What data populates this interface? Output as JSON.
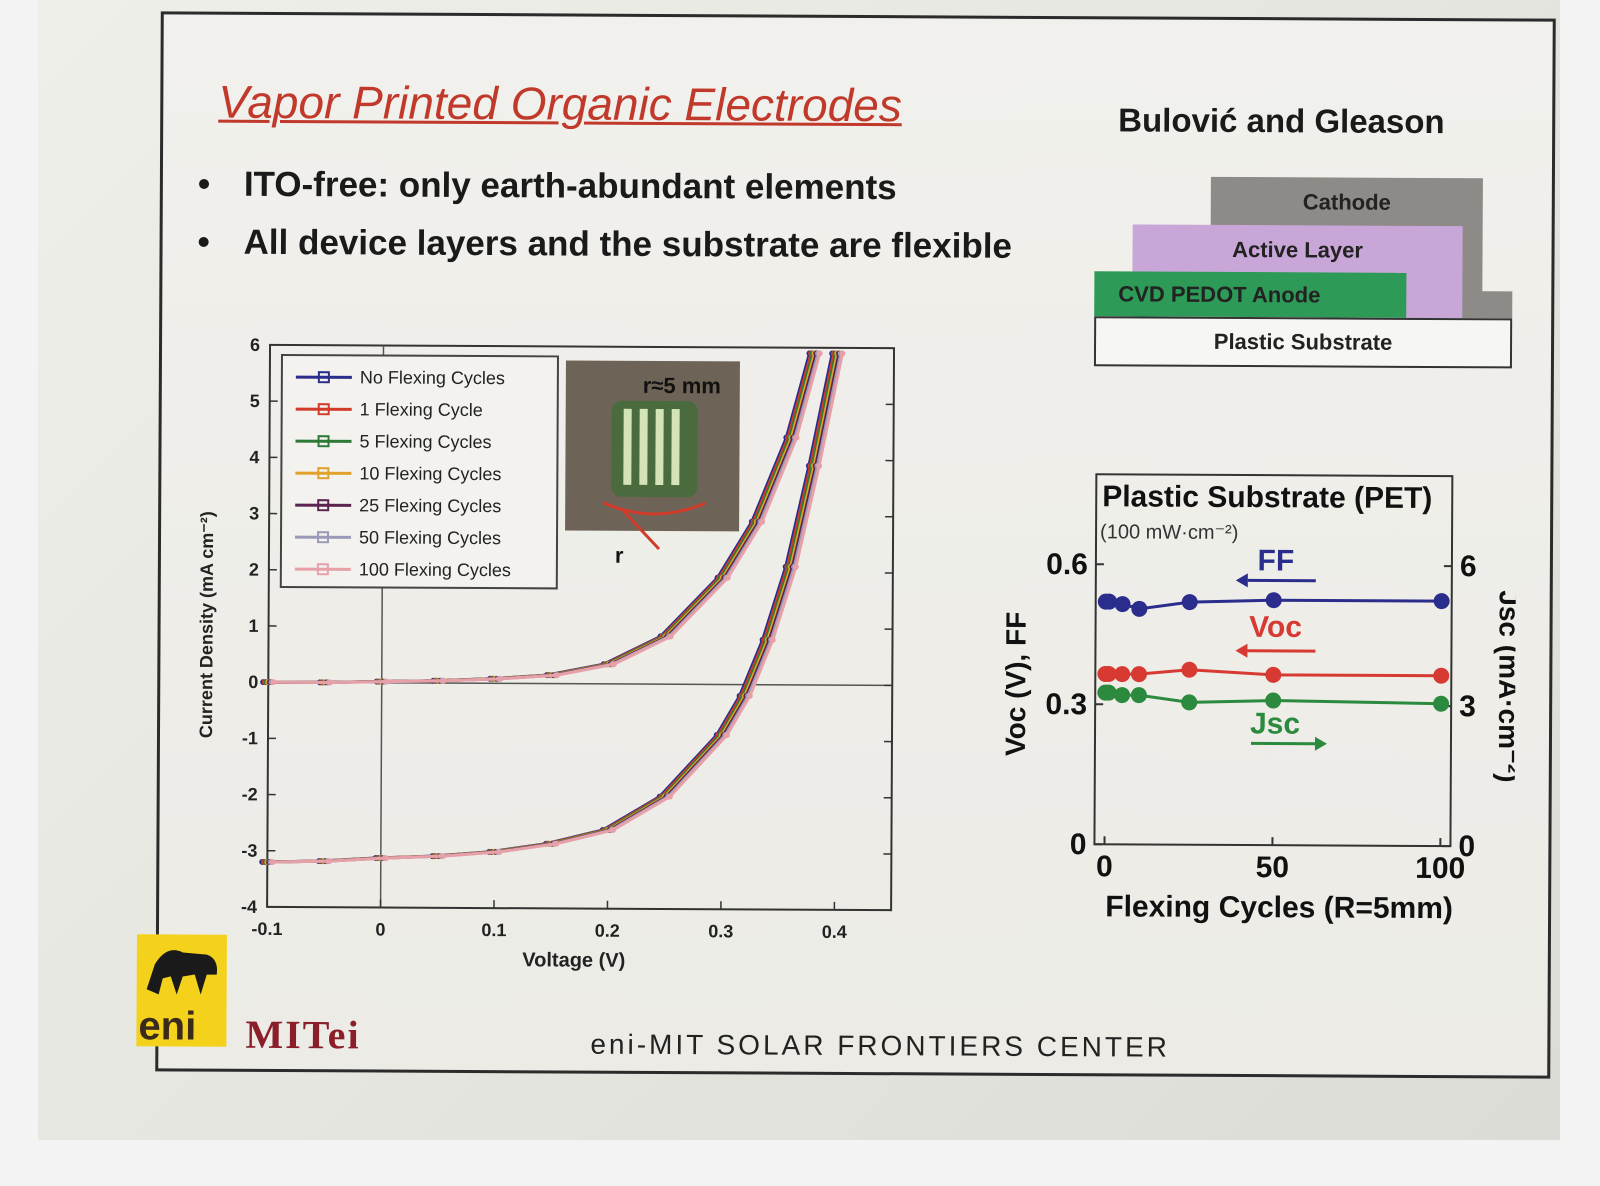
{
  "slide": {
    "title": "Vapor Printed Organic Electrodes",
    "authors": "Bulović and Gleason",
    "bullets": [
      "ITO-free: only earth-abundant elements",
      "All device layers and the substrate are flexible"
    ],
    "footer": "eni-MIT SOLAR FRONTIERS CENTER",
    "logo_eni": "eni",
    "logo_mitei": "MITei"
  },
  "device_stack": {
    "layers": [
      {
        "label": "Cathode",
        "color": "#8e8a87"
      },
      {
        "label": "Active Layer",
        "color": "#c9a6d8"
      },
      {
        "label": "CVD PEDOT Anode",
        "color": "#2e9a57"
      },
      {
        "label": "Plastic Substrate",
        "color": "#f6f6f3"
      }
    ]
  },
  "inset_photo": {
    "label": "r≈5 mm",
    "radius_label": "r"
  },
  "chart_data": [
    {
      "type": "line",
      "title": "",
      "xlabel": "Voltage (V)",
      "ylabel": "Current Density (mA cm⁻²)",
      "xlim": [
        -0.1,
        0.45
      ],
      "ylim": [
        -4,
        6
      ],
      "xticks": [
        "-0.1",
        "0",
        "0.1",
        "0.2",
        "0.3",
        "0.4"
      ],
      "yticks": [
        "-4",
        "-3",
        "-2",
        "-1",
        "0",
        "1",
        "2",
        "3",
        "4",
        "5",
        "6"
      ],
      "legend": "top-left",
      "series": [
        {
          "name": "No Flexing Cycles",
          "color": "#2b2d8c"
        },
        {
          "name": "1 Flexing Cycle",
          "color": "#d23a2a"
        },
        {
          "name": "5 Flexing Cycles",
          "color": "#2c7a35"
        },
        {
          "name": "10 Flexing Cycles",
          "color": "#e0a22a"
        },
        {
          "name": "25 Flexing Cycles",
          "color": "#5a2350"
        },
        {
          "name": "50 Flexing Cycles",
          "color": "#9a9ab8"
        },
        {
          "name": "100 Flexing Cycles",
          "color": "#e8a0a8"
        }
      ],
      "curves": {
        "dark": {
          "x": [
            -0.1,
            -0.05,
            0,
            0.05,
            0.1,
            0.15,
            0.2,
            0.25,
            0.3,
            0.33,
            0.36,
            0.38
          ],
          "y": [
            0.0,
            0.0,
            0.02,
            0.04,
            0.08,
            0.15,
            0.35,
            0.85,
            1.9,
            2.9,
            4.4,
            5.9
          ]
        },
        "light": {
          "x": [
            -0.1,
            -0.05,
            0,
            0.05,
            0.1,
            0.15,
            0.2,
            0.25,
            0.3,
            0.32,
            0.34,
            0.36,
            0.38,
            0.4
          ],
          "y": [
            -3.2,
            -3.18,
            -3.12,
            -3.08,
            -3.0,
            -2.85,
            -2.6,
            -2.0,
            -0.9,
            -0.2,
            0.8,
            2.1,
            3.9,
            5.9
          ]
        }
      }
    },
    {
      "type": "line",
      "title": "Plastic Substrate (PET)",
      "subtitle": "(100 mW·cm⁻²)",
      "xlabel": "Flexing Cycles (R=5mm)",
      "ylabel": "Voc (V), FF",
      "y2label": "Jsc (mA·cm⁻²)",
      "xlim": [
        -3,
        103
      ],
      "ylim": [
        0,
        0.6
      ],
      "y2lim": [
        0,
        6
      ],
      "xticks": [
        "0",
        "50",
        "100"
      ],
      "yticks": [
        "0",
        "0.3",
        "0.6"
      ],
      "y2ticks": [
        "0",
        "3",
        "6"
      ],
      "x": [
        0,
        1,
        5,
        10,
        25,
        50,
        100
      ],
      "series": [
        {
          "name": "FF",
          "axis": "left",
          "color": "#2b2d8c",
          "values": [
            0.52,
            0.52,
            0.515,
            0.505,
            0.52,
            0.525,
            0.525
          ],
          "arrow": "left"
        },
        {
          "name": "Voc",
          "axis": "left",
          "color": "#d63a32",
          "values": [
            0.365,
            0.365,
            0.365,
            0.365,
            0.375,
            0.365,
            0.365
          ],
          "arrow": "left"
        },
        {
          "name": "Jsc",
          "axis": "right",
          "color": "#2c8a3e",
          "values": [
            3.25,
            3.25,
            3.2,
            3.2,
            3.05,
            3.1,
            3.05
          ],
          "arrow": "right"
        }
      ]
    }
  ]
}
